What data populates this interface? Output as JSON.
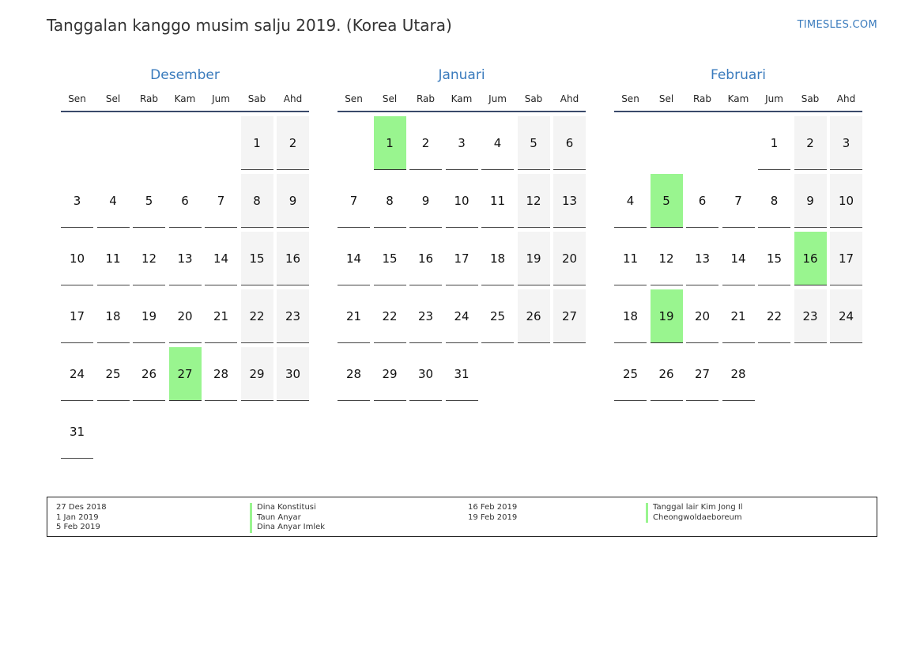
{
  "title": "Tanggalan kanggo musim salju 2019. (Korea Utara)",
  "brand": "TIMESLES.COM",
  "weekdays": [
    "Sen",
    "Sel",
    "Rab",
    "Kam",
    "Jum",
    "Sab",
    "Ahd"
  ],
  "months": [
    {
      "name": "Desember",
      "start_offset": 5,
      "days": [
        "1",
        "2",
        "3",
        "4",
        "5",
        "6",
        "7",
        "8",
        "9",
        "10",
        "11",
        "12",
        "13",
        "14",
        "15",
        "16",
        "17",
        "18",
        "19",
        "20",
        "21",
        "22",
        "23",
        "24",
        "25",
        "26",
        "27",
        "28",
        "29",
        "30",
        "31"
      ],
      "holidays": [
        "27"
      ]
    },
    {
      "name": "Januari",
      "start_offset": 1,
      "days": [
        "1",
        "2",
        "3",
        "4",
        "5",
        "6",
        "7",
        "8",
        "9",
        "10",
        "11",
        "12",
        "13",
        "14",
        "15",
        "16",
        "17",
        "18",
        "19",
        "20",
        "21",
        "22",
        "23",
        "24",
        "25",
        "26",
        "27",
        "28",
        "29",
        "30",
        "31"
      ],
      "holidays": [
        "1"
      ]
    },
    {
      "name": "Februari",
      "start_offset": 4,
      "days": [
        "1",
        "2",
        "3",
        "4",
        "5",
        "6",
        "7",
        "8",
        "9",
        "10",
        "11",
        "12",
        "13",
        "14",
        "15",
        "16",
        "17",
        "18",
        "19",
        "20",
        "21",
        "22",
        "23",
        "24",
        "25",
        "26",
        "27",
        "28"
      ],
      "holidays": [
        "5",
        "16",
        "19"
      ]
    }
  ],
  "legend": {
    "left_dates": [
      "27 Des 2018",
      "1 Jan 2019",
      "5 Feb 2019"
    ],
    "left_names": [
      "Dina Konstitusi",
      "Taun Anyar",
      "Dina Anyar Imlek"
    ],
    "right_dates": [
      "16 Feb 2019",
      "19 Feb 2019"
    ],
    "right_names": [
      "Tanggal lair Kim Jong Il",
      "Cheongwoldaeboreum"
    ]
  },
  "colors": {
    "holiday": "#99f58f",
    "weekend": "#f4f4f4",
    "accent": "#3a7bbd"
  }
}
